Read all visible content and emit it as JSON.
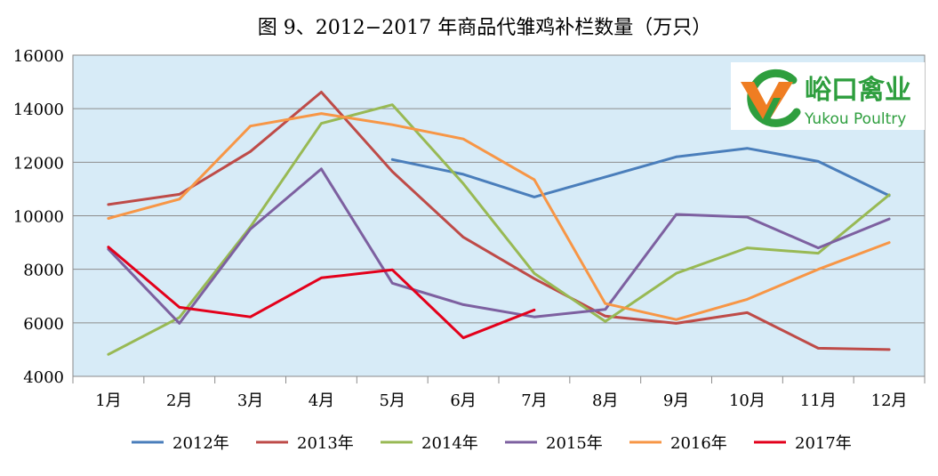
{
  "chart_data": {
    "type": "line",
    "title": "图 9、2012−2017 年商品代雏鸡补栏数量（万只）",
    "categories": [
      "1月",
      "2月",
      "3月",
      "4月",
      "5月",
      "6月",
      "7月",
      "8月",
      "9月",
      "10月",
      "11月",
      "12月"
    ],
    "y_ticks": [
      "16000",
      "14000",
      "12000",
      "10000",
      "8000",
      "6000",
      "4000"
    ],
    "ylim": [
      4000,
      16000
    ],
    "grid": true,
    "legend_position": "bottom",
    "series": [
      {
        "name": "2012年",
        "color": "#4a7ebb",
        "values": [
          null,
          null,
          null,
          null,
          12100,
          11550,
          10700,
          11450,
          12200,
          12520,
          12030,
          10750
        ]
      },
      {
        "name": "2013年",
        "color": "#be4b48",
        "values": [
          10420,
          10800,
          12400,
          14620,
          11650,
          9200,
          7650,
          6250,
          5980,
          6380,
          5050,
          5000
        ]
      },
      {
        "name": "2014年",
        "color": "#98b954",
        "values": [
          4820,
          6200,
          9580,
          13450,
          14150,
          11200,
          7850,
          6050,
          7850,
          8800,
          8600,
          10780
        ]
      },
      {
        "name": "2015年",
        "color": "#7d60a0",
        "values": [
          8750,
          5980,
          9500,
          11750,
          7480,
          6680,
          6220,
          6500,
          10050,
          9950,
          8800,
          9880
        ]
      },
      {
        "name": "2016年",
        "color": "#f79646",
        "values": [
          9900,
          10620,
          13350,
          13820,
          13400,
          12870,
          11350,
          6720,
          6120,
          6880,
          8000,
          9000
        ]
      },
      {
        "name": "2017年",
        "color": "#e3001b",
        "values": [
          8830,
          6580,
          6220,
          7680,
          7980,
          5440,
          6480,
          null,
          null,
          null,
          null,
          null
        ]
      }
    ]
  },
  "logo": {
    "cn": "峪口禽业",
    "en": "Yukou Poultry",
    "primary_color": "#2e9e3e",
    "accent_color": "#ef7d22"
  }
}
